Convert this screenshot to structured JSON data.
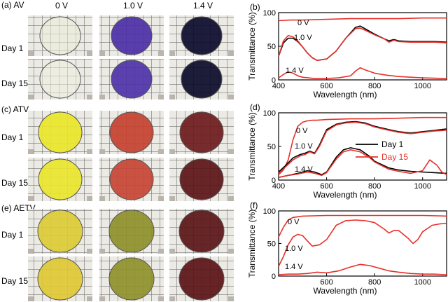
{
  "photo_panels": [
    {
      "label": "(a) AV",
      "columns": [
        "0 V",
        "1.0  V",
        "1.4  V"
      ],
      "rows": [
        "Day 1",
        "Day 15"
      ],
      "colors": [
        [
          "#ecedd8",
          "#4b2ea6",
          "#0b0a2c"
        ],
        [
          "#eef0de",
          "#4d32a8",
          "#0b0b2a"
        ]
      ]
    },
    {
      "label": "(c) ATV",
      "rows": [
        "Day 1",
        "Day 15"
      ],
      "colors": [
        [
          "#e9e62a",
          "#c44030",
          "#6e1a1c"
        ],
        [
          "#eae52c",
          "#c64435",
          "#5c1417"
        ]
      ]
    },
    {
      "label": "(e) AETV",
      "rows": [
        "Day 1",
        "Day 15"
      ],
      "colors": [
        [
          "#dccb36",
          "#8d8f2a",
          "#5a1317"
        ],
        [
          "#dec834",
          "#8f902a",
          "#5a1216"
        ]
      ]
    }
  ],
  "legend": {
    "day1": "Day  1",
    "day15": "Day 15",
    "day1_color": "#000000",
    "day15_color": "#e8302a"
  },
  "chart_data": [
    {
      "panel": "(b)",
      "type": "line",
      "xlabel": "Wavelength (nm)",
      "ylabel": "Transmittance (%)",
      "xlim": [
        400,
        1100
      ],
      "ylim": [
        0,
        100
      ],
      "xticks": [
        400,
        600,
        800,
        1000
      ],
      "yticks": [
        0,
        50,
        100
      ],
      "curve_labels": [
        "0 V",
        "1.0 V",
        "1.4 V"
      ],
      "series": [
        {
          "x": [
            400,
            450,
            500,
            600,
            700,
            800,
            900,
            1000,
            1100
          ],
          "values": [
            88,
            89,
            89,
            90,
            91,
            91,
            91,
            92,
            92
          ]
        },
        {
          "x": [
            400,
            420,
            440,
            460,
            480,
            500,
            520,
            540,
            560,
            600,
            640,
            680,
            720,
            740,
            760,
            800,
            840,
            860,
            880,
            900,
            950,
            1000,
            1050,
            1100
          ],
          "values": [
            35,
            55,
            62,
            62,
            57,
            49,
            40,
            33,
            29,
            31,
            43,
            62,
            78,
            80,
            76,
            68,
            61,
            58,
            60,
            58,
            57,
            57,
            57,
            56
          ]
        },
        {
          "x": [
            400,
            420,
            440,
            460,
            480,
            500,
            520,
            540,
            560,
            600,
            640,
            680,
            720,
            740,
            760,
            800,
            840,
            860,
            880,
            900,
            950,
            1000,
            1050,
            1100
          ],
          "values": [
            35,
            58,
            66,
            64,
            58,
            49,
            40,
            33,
            29,
            31,
            43,
            62,
            76,
            77,
            74,
            67,
            61,
            56,
            59,
            57,
            56,
            56,
            56,
            55
          ]
        },
        {
          "x": [
            400,
            420,
            440,
            460,
            480,
            500,
            550,
            600,
            650,
            700,
            720,
            740,
            760,
            800,
            850,
            900,
            950,
            1000,
            1100
          ],
          "values": [
            3,
            8,
            12,
            10,
            6,
            4,
            2,
            2,
            3,
            6,
            13,
            18,
            15,
            10,
            7,
            5,
            4,
            3,
            2
          ]
        }
      ]
    },
    {
      "panel": "(d)",
      "type": "line",
      "xlabel": "Wavelength (nm)",
      "ylabel": "Transmittance (%)",
      "xlim": [
        400,
        1100
      ],
      "ylim": [
        0,
        100
      ],
      "xticks": [
        400,
        600,
        800,
        1000
      ],
      "yticks": [
        0,
        50,
        100
      ],
      "curve_labels": [
        "0 V",
        "1.0 V",
        "1.4 V"
      ],
      "legend": [
        "Day  1",
        "Day 15"
      ],
      "series": [
        {
          "name": "Day  1",
          "x": [
            400,
            420,
            440,
            460,
            480,
            500,
            520,
            540,
            560,
            600,
            700,
            800,
            900,
            1000,
            1100
          ],
          "values": [
            8,
            15,
            30,
            60,
            80,
            86,
            88,
            89,
            89,
            90,
            91,
            91,
            92,
            93,
            93
          ]
        },
        {
          "name": "Day  1",
          "x": [
            400,
            430,
            460,
            490,
            510,
            530,
            550,
            570,
            600,
            640,
            680,
            720,
            760,
            800,
            860,
            900,
            950,
            1000,
            1050,
            1100
          ],
          "values": [
            12,
            22,
            33,
            38,
            40,
            43,
            40,
            52,
            75,
            83,
            86,
            87,
            85,
            80,
            75,
            72,
            70,
            72,
            74,
            76
          ]
        },
        {
          "name": "Day 15",
          "x": [
            400,
            430,
            460,
            490,
            510,
            530,
            550,
            570,
            600,
            640,
            680,
            720,
            760,
            800,
            860,
            900,
            950,
            1000,
            1050,
            1100
          ],
          "values": [
            10,
            20,
            30,
            36,
            38,
            42,
            39,
            50,
            73,
            82,
            85,
            86,
            84,
            79,
            74,
            71,
            69,
            71,
            73,
            74
          ]
        },
        {
          "name": "Day  1",
          "x": [
            400,
            440,
            480,
            520,
            550,
            580,
            600,
            640,
            670,
            700,
            740,
            780,
            800,
            860,
            900,
            950,
            1000,
            1050,
            1100
          ],
          "values": [
            4,
            7,
            10,
            14,
            12,
            8,
            12,
            34,
            45,
            48,
            45,
            35,
            28,
            18,
            15,
            13,
            12,
            11,
            10
          ]
        },
        {
          "name": "Day 15",
          "x": [
            400,
            440,
            480,
            520,
            550,
            580,
            600,
            640,
            670,
            700,
            740,
            780,
            800,
            860,
            900,
            950,
            1000,
            1030,
            1060,
            1080,
            1100
          ],
          "values": [
            4,
            7,
            9,
            12,
            10,
            7,
            11,
            31,
            42,
            45,
            42,
            33,
            27,
            16,
            13,
            10,
            14,
            30,
            22,
            12,
            8
          ]
        }
      ]
    },
    {
      "panel": "(f)",
      "type": "line",
      "xlabel": "Wavelength (nm)",
      "ylabel": "Transmittance (%)",
      "xlim": [
        400,
        1100
      ],
      "ylim": [
        0,
        100
      ],
      "xticks": [
        600,
        800,
        1000
      ],
      "yticks": [
        0,
        50,
        100
      ],
      "curve_labels": [
        "0 V",
        "1.0 V",
        "1.4 V"
      ],
      "series": [
        {
          "x": [
            400,
            420,
            440,
            460,
            500,
            600,
            700,
            800,
            900,
            1000,
            1100
          ],
          "values": [
            60,
            75,
            86,
            90,
            92,
            93,
            93,
            93,
            93,
            93,
            92
          ]
        },
        {
          "x": [
            400,
            420,
            440,
            460,
            480,
            500,
            520,
            540,
            570,
            600,
            640,
            680,
            720,
            760,
            800,
            840,
            860,
            880,
            900,
            940,
            960,
            980,
            1000,
            1040,
            1070,
            1100
          ],
          "values": [
            15,
            30,
            48,
            60,
            64,
            62,
            54,
            46,
            48,
            56,
            78,
            85,
            86,
            85,
            82,
            72,
            66,
            70,
            70,
            58,
            50,
            56,
            68,
            78,
            80,
            81
          ]
        },
        {
          "x": [
            400,
            440,
            480,
            520,
            560,
            600,
            650,
            700,
            740,
            780,
            820,
            860,
            900,
            950,
            1000,
            1050,
            1100
          ],
          "values": [
            2,
            3,
            3,
            4,
            6,
            5,
            8,
            14,
            18,
            16,
            12,
            8,
            6,
            4,
            3,
            3,
            2
          ]
        }
      ]
    }
  ]
}
